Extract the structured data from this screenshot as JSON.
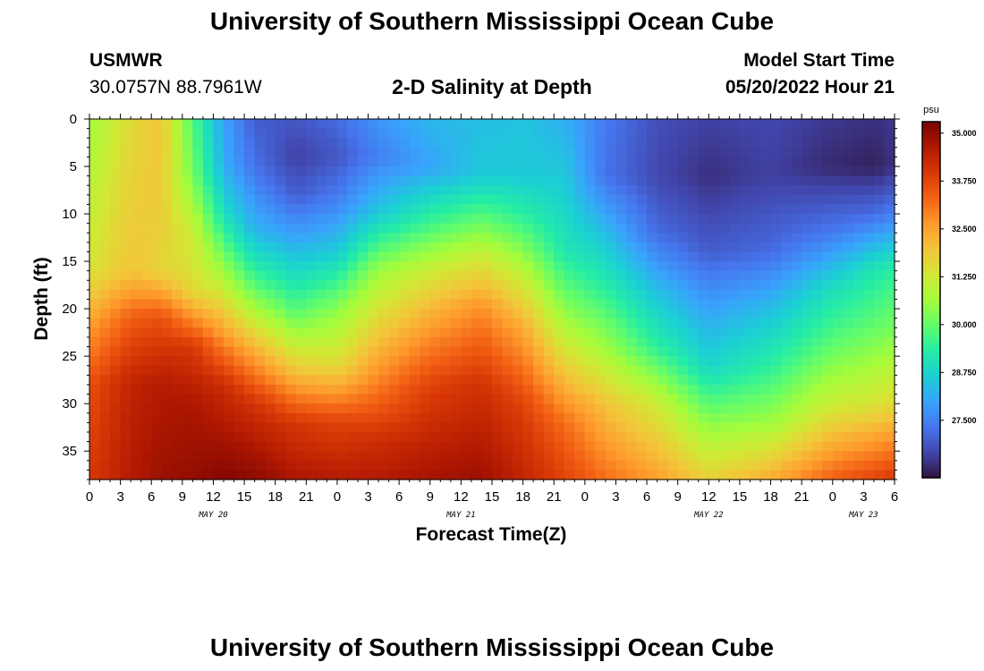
{
  "header": {
    "title": "University of Southern Mississippi Ocean Cube",
    "station": "USMWR",
    "coords": "30.0757N  88.7961W",
    "subtitle": "2-D Salinity at Depth",
    "model_start_label": "Model Start Time",
    "model_start_value": "05/20/2022 Hour 21"
  },
  "footer": {
    "title": "University of Southern Mississippi Ocean Cube"
  },
  "colors": {
    "colormap": [
      "#30123b",
      "#4145ab",
      "#4675ed",
      "#39a2fc",
      "#1bcfd4",
      "#24eca6",
      "#61fc6c",
      "#a4fc3b",
      "#d1e834",
      "#f3c63a",
      "#fe9b2d",
      "#f36315",
      "#d93806",
      "#b11901",
      "#7a0402"
    ]
  },
  "chart_data": {
    "type": "heatmap",
    "title": "2-D Salinity at Depth",
    "xlabel": "Forecast Time(Z)",
    "ylabel": "Depth (ft)",
    "colorbar_unit": "psu",
    "x_range_hours": [
      0,
      78
    ],
    "y_range_ft": [
      0,
      38
    ],
    "x_ticks": [
      "0",
      "3",
      "6",
      "9",
      "12",
      "15",
      "18",
      "21",
      "0",
      "3",
      "6",
      "9",
      "12",
      "15",
      "18",
      "21",
      "0",
      "3",
      "6",
      "9",
      "12",
      "15",
      "18",
      "21",
      "0",
      "3",
      "6"
    ],
    "y_ticks": [
      "0",
      "5",
      "10",
      "15",
      "20",
      "25",
      "30",
      "35"
    ],
    "day_labels": [
      {
        "label": "MAY 20",
        "hour": 12
      },
      {
        "label": "MAY 21",
        "hour": 36
      },
      {
        "label": "MAY 22",
        "hour": 60
      },
      {
        "label": "MAY 23",
        "hour": 75
      }
    ],
    "colorbar_ticks": [
      "27.500",
      "28.750",
      "30.000",
      "31.250",
      "32.500",
      "33.750",
      "35.000"
    ],
    "colorbar_range": [
      26.0,
      35.3
    ],
    "columns": [
      {
        "hour": 0,
        "bands": [
          [
            0,
            30.6
          ],
          [
            8,
            31.0
          ],
          [
            16,
            31.4
          ],
          [
            22,
            32.6
          ],
          [
            28,
            33.6
          ],
          [
            38,
            34.0
          ]
        ]
      },
      {
        "hour": 4,
        "bands": [
          [
            0,
            31.6
          ],
          [
            8,
            31.8
          ],
          [
            16,
            32.0
          ],
          [
            21,
            33.4
          ],
          [
            28,
            34.4
          ],
          [
            38,
            34.6
          ]
        ]
      },
      {
        "hour": 7,
        "bands": [
          [
            0,
            32.0
          ],
          [
            8,
            31.9
          ],
          [
            16,
            31.7
          ],
          [
            21,
            33.6
          ],
          [
            28,
            34.6
          ],
          [
            38,
            34.9
          ]
        ]
      },
      {
        "hour": 10,
        "bands": [
          [
            0,
            29.8
          ],
          [
            6,
            30.2
          ],
          [
            12,
            31.2
          ],
          [
            18,
            31.6
          ],
          [
            24,
            34.0
          ],
          [
            30,
            34.7
          ],
          [
            38,
            35.0
          ]
        ]
      },
      {
        "hour": 13,
        "bands": [
          [
            0,
            28.0
          ],
          [
            5,
            28.2
          ],
          [
            10,
            29.0
          ],
          [
            16,
            30.6
          ],
          [
            22,
            32.4
          ],
          [
            28,
            34.2
          ],
          [
            34,
            34.8
          ],
          [
            38,
            35.2
          ]
        ]
      },
      {
        "hour": 16,
        "bands": [
          [
            0,
            27.0
          ],
          [
            5,
            27.3
          ],
          [
            12,
            28.3
          ],
          [
            18,
            30.0
          ],
          [
            24,
            32.2
          ],
          [
            30,
            34.1
          ],
          [
            38,
            35.1
          ]
        ]
      },
      {
        "hour": 20,
        "bands": [
          [
            0,
            26.9
          ],
          [
            4,
            26.6
          ],
          [
            8,
            27.0
          ],
          [
            14,
            28.4
          ],
          [
            20,
            29.8
          ],
          [
            26,
            31.8
          ],
          [
            32,
            34.0
          ],
          [
            38,
            34.7
          ]
        ]
      },
      {
        "hour": 24,
        "bands": [
          [
            0,
            27.2
          ],
          [
            4,
            26.9
          ],
          [
            8,
            27.4
          ],
          [
            14,
            28.6
          ],
          [
            20,
            30.4
          ],
          [
            26,
            31.6
          ],
          [
            32,
            33.8
          ],
          [
            38,
            34.6
          ]
        ]
      },
      {
        "hour": 28,
        "bands": [
          [
            0,
            27.8
          ],
          [
            4,
            27.5
          ],
          [
            10,
            28.6
          ],
          [
            16,
            30.6
          ],
          [
            22,
            31.8
          ],
          [
            28,
            33.0
          ],
          [
            34,
            34.2
          ],
          [
            38,
            34.6
          ]
        ]
      },
      {
        "hour": 33,
        "bands": [
          [
            0,
            28.3
          ],
          [
            5,
            28.0
          ],
          [
            11,
            29.6
          ],
          [
            16,
            31.2
          ],
          [
            20,
            32.2
          ],
          [
            28,
            33.8
          ],
          [
            38,
            34.8
          ]
        ]
      },
      {
        "hour": 38,
        "bands": [
          [
            0,
            28.4
          ],
          [
            6,
            28.6
          ],
          [
            10,
            29.8
          ],
          [
            15,
            31.4
          ],
          [
            20,
            32.8
          ],
          [
            28,
            34.1
          ],
          [
            38,
            34.9
          ]
        ]
      },
      {
        "hour": 42,
        "bands": [
          [
            0,
            28.5
          ],
          [
            6,
            28.6
          ],
          [
            11,
            29.6
          ],
          [
            17,
            31.2
          ],
          [
            22,
            32.4
          ],
          [
            30,
            33.8
          ],
          [
            38,
            34.4
          ]
        ]
      },
      {
        "hour": 46,
        "bands": [
          [
            0,
            28.2
          ],
          [
            8,
            28.7
          ],
          [
            14,
            29.2
          ],
          [
            20,
            30.4
          ],
          [
            26,
            31.8
          ],
          [
            32,
            33.2
          ],
          [
            38,
            33.8
          ]
        ]
      },
      {
        "hour": 50,
        "bands": [
          [
            0,
            27.4
          ],
          [
            6,
            27.3
          ],
          [
            12,
            28.4
          ],
          [
            18,
            29.4
          ],
          [
            24,
            30.6
          ],
          [
            30,
            32.0
          ],
          [
            38,
            33.2
          ]
        ]
      },
      {
        "hour": 55,
        "bands": [
          [
            0,
            26.8
          ],
          [
            6,
            26.7
          ],
          [
            12,
            27.2
          ],
          [
            18,
            28.4
          ],
          [
            24,
            29.4
          ],
          [
            30,
            31.2
          ],
          [
            38,
            32.6
          ]
        ]
      },
      {
        "hour": 60,
        "bands": [
          [
            0,
            26.6
          ],
          [
            6,
            26.4
          ],
          [
            14,
            27.0
          ],
          [
            20,
            28.0
          ],
          [
            26,
            28.8
          ],
          [
            32,
            30.4
          ],
          [
            38,
            31.8
          ]
        ]
      },
      {
        "hour": 66,
        "bands": [
          [
            0,
            26.7
          ],
          [
            6,
            26.6
          ],
          [
            14,
            27.2
          ],
          [
            20,
            28.4
          ],
          [
            26,
            29.4
          ],
          [
            32,
            30.6
          ],
          [
            38,
            32.4
          ]
        ]
      },
      {
        "hour": 72,
        "bands": [
          [
            0,
            26.5
          ],
          [
            5,
            26.3
          ],
          [
            12,
            27.4
          ],
          [
            18,
            29.0
          ],
          [
            24,
            30.0
          ],
          [
            30,
            31.2
          ],
          [
            38,
            33.4
          ]
        ]
      },
      {
        "hour": 76,
        "bands": [
          [
            0,
            26.4
          ],
          [
            5,
            26.2
          ],
          [
            10,
            27.2
          ],
          [
            16,
            29.2
          ],
          [
            22,
            30.0
          ],
          [
            30,
            31.4
          ],
          [
            38,
            33.8
          ]
        ]
      },
      {
        "hour": 78,
        "bands": [
          [
            0,
            26.5
          ],
          [
            5,
            26.4
          ],
          [
            10,
            27.5
          ],
          [
            16,
            29.4
          ],
          [
            22,
            30.2
          ],
          [
            30,
            31.6
          ],
          [
            38,
            34.0
          ]
        ]
      }
    ]
  }
}
